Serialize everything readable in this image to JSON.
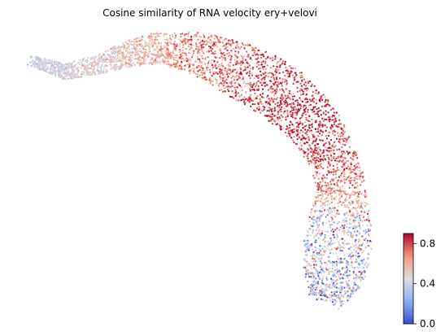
{
  "chart_data": {
    "type": "scatter",
    "title": "Cosine similarity of RNA velocity ery+velovi",
    "xlabel": "",
    "ylabel": "",
    "grid": false,
    "axes_visible": false,
    "colormap": "coolwarm",
    "colormap_stops": [
      "#3b4cc0",
      "#8db0fe",
      "#dddddd",
      "#f49a7b",
      "#b40426"
    ],
    "color_range": [
      0.0,
      0.9
    ],
    "colorbar": {
      "placement": "bottom-right",
      "ticks": [
        0.0,
        0.4,
        0.8
      ],
      "tick_labels": [
        "0.0",
        "0.4",
        "0.8"
      ]
    }
  }
}
